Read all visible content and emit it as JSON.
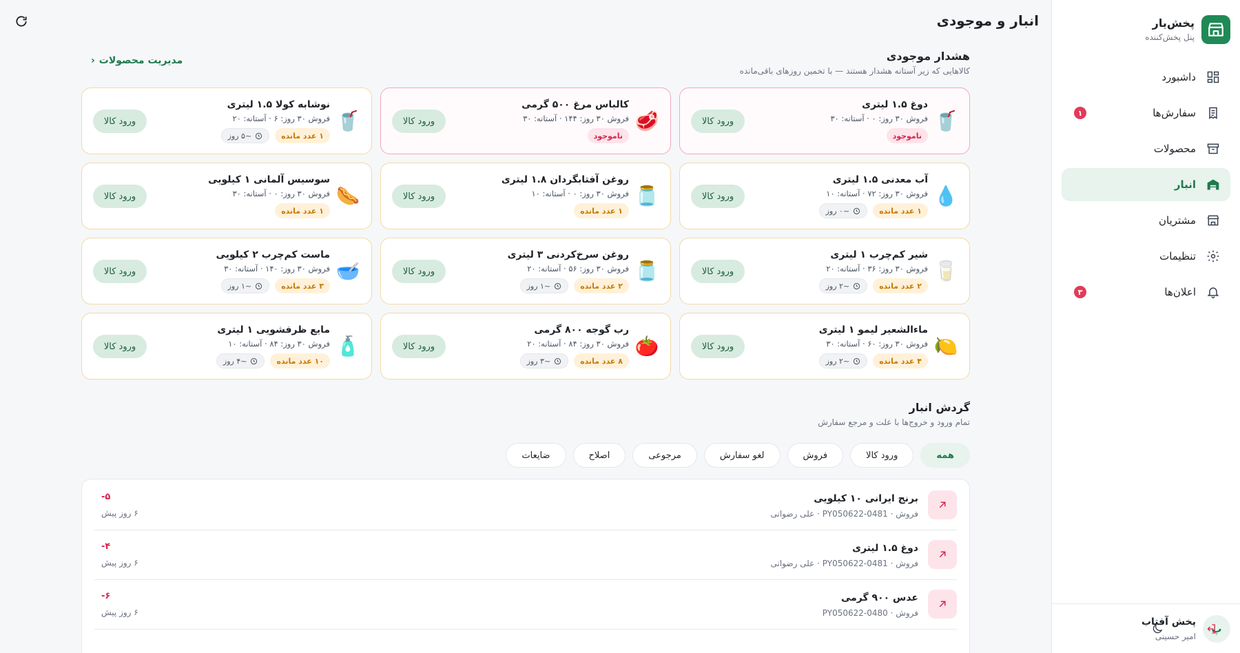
{
  "app": {
    "brand_title": "پخش‌یار",
    "brand_subtitle": "پنل پخش‌کننده",
    "brand_color": "#1f8a56"
  },
  "sidebar": {
    "items": [
      {
        "label": "داشبورد",
        "icon": "dashboard-icon",
        "active": false,
        "badge": ""
      },
      {
        "label": "سفارش‌ها",
        "icon": "orders-icon",
        "active": false,
        "badge": "۱"
      },
      {
        "label": "محصولات",
        "icon": "archive-box-icon",
        "active": false,
        "badge": ""
      },
      {
        "label": "انبار",
        "icon": "warehouse-icon",
        "active": true,
        "badge": ""
      },
      {
        "label": "مشتریان",
        "icon": "store-icon",
        "active": false,
        "badge": ""
      },
      {
        "label": "تنظیمات",
        "icon": "gear-icon",
        "active": false,
        "badge": ""
      },
      {
        "label": "اعلان‌ها",
        "icon": "bell-icon",
        "active": false,
        "badge": "۳"
      }
    ]
  },
  "account": {
    "avatar_letter": "پ",
    "company": "پخش آفتاب",
    "user": "امیر حسینی"
  },
  "header": {
    "title": "انبار و موجودی"
  },
  "alerts": {
    "title": "هشدار موجودی",
    "subtitle": "کالاهایی که زیر آستانه هشدار هستند — با تخمین روزهای باقی‌مانده",
    "manage_link": "مدیریت محصولات",
    "button_label": "ورود کالا",
    "cards": [
      {
        "name": "دوغ ۱.۵ لیتری",
        "meta": "فروش ۳۰ روز: ۰ · آستانه: ۳۰",
        "status": "ناموجود",
        "status_type": "out",
        "days": "",
        "emoji": "🥤",
        "danger": true
      },
      {
        "name": "کالباس مرغ ۵۰۰ گرمی",
        "meta": "فروش ۳۰ روز: ۱۴۴ · آستانه: ۳۰",
        "status": "ناموجود",
        "status_type": "out",
        "days": "",
        "emoji": "🥩",
        "danger": true
      },
      {
        "name": "نوشابه کولا ۱.۵ لیتری",
        "meta": "فروش ۳۰ روز: ۶ · آستانه: ۲۰",
        "status": "۱ عدد مانده",
        "status_type": "remain",
        "days": "~۵ روز",
        "emoji": "🥤",
        "danger": false
      },
      {
        "name": "آب معدنی ۱.۵ لیتری",
        "meta": "فروش ۳۰ روز: ۷۲ · آستانه: ۱۰",
        "status": "۱ عدد مانده",
        "status_type": "remain",
        "days": "~۰ روز",
        "emoji": "💧",
        "danger": false
      },
      {
        "name": "روغن آفتابگردان ۱.۸ لیتری",
        "meta": "فروش ۳۰ روز: ۰ · آستانه: ۱۰",
        "status": "۱ عدد مانده",
        "status_type": "remain",
        "days": "",
        "emoji": "🫙",
        "danger": false
      },
      {
        "name": "سوسیس آلمانی ۱ کیلویی",
        "meta": "فروش ۳۰ روز: ۰ · آستانه: ۳۰",
        "status": "۱ عدد مانده",
        "status_type": "remain",
        "days": "",
        "emoji": "🌭",
        "danger": false
      },
      {
        "name": "شیر کم‌چرب ۱ لیتری",
        "meta": "فروش ۳۰ روز: ۳۶ · آستانه: ۲۰",
        "status": "۲ عدد مانده",
        "status_type": "remain",
        "days": "~۲ روز",
        "emoji": "🥛",
        "danger": false
      },
      {
        "name": "روغن سرخ‌کردنی ۳ لیتری",
        "meta": "فروش ۳۰ روز: ۵۶ · آستانه: ۲۰",
        "status": "۲ عدد مانده",
        "status_type": "remain",
        "days": "~۱ روز",
        "emoji": "🫙",
        "danger": false
      },
      {
        "name": "ماست کم‌چرب ۲ کیلویی",
        "meta": "فروش ۳۰ روز: ۱۴۰ · آستانه: ۳۰",
        "status": "۳ عدد مانده",
        "status_type": "remain",
        "days": "~۱ روز",
        "emoji": "🥣",
        "danger": false
      },
      {
        "name": "ماءالشعیر لیمو ۱ لیتری",
        "meta": "فروش ۳۰ روز: ۶۰ · آستانه: ۳۰",
        "status": "۴ عدد مانده",
        "status_type": "remain",
        "days": "~۲ روز",
        "emoji": "🍋",
        "danger": false
      },
      {
        "name": "رب گوجه ۸۰۰ گرمی",
        "meta": "فروش ۳۰ روز: ۸۴ · آستانه: ۲۰",
        "status": "۸ عدد مانده",
        "status_type": "remain",
        "days": "~۳ روز",
        "emoji": "🍅",
        "danger": false
      },
      {
        "name": "مایع ظرفشویی ۱ لیتری",
        "meta": "فروش ۳۰ روز: ۸۴ · آستانه: ۱۰",
        "status": "۱۰ عدد مانده",
        "status_type": "remain",
        "days": "~۴ روز",
        "emoji": "🧴",
        "danger": false
      }
    ]
  },
  "movements": {
    "title": "گردش انبار",
    "subtitle": "تمام ورود و خروج‌ها با علت و مرجع سفارش",
    "filters": [
      {
        "label": "همه",
        "active": true
      },
      {
        "label": "ورود کالا",
        "active": false
      },
      {
        "label": "فروش",
        "active": false
      },
      {
        "label": "لغو سفارش",
        "active": false
      },
      {
        "label": "مرجوعی",
        "active": false
      },
      {
        "label": "اصلاح",
        "active": false
      },
      {
        "label": "ضایعات",
        "active": false
      }
    ],
    "rows": [
      {
        "name": "برنج ایرانی ۱۰ کیلویی",
        "meta": "فروش · PY050622-0481 · علی رضوانی",
        "qty": "-۵",
        "time": "۶ روز پیش"
      },
      {
        "name": "دوغ ۱.۵ لیتری",
        "meta": "فروش · PY050622-0481 · علی رضوانی",
        "qty": "-۴",
        "time": "۶ روز پیش"
      },
      {
        "name": "عدس ۹۰۰ گرمی",
        "meta": "فروش · PY050622-0480",
        "qty": "-۶",
        "time": "۶ روز پیش"
      }
    ]
  }
}
